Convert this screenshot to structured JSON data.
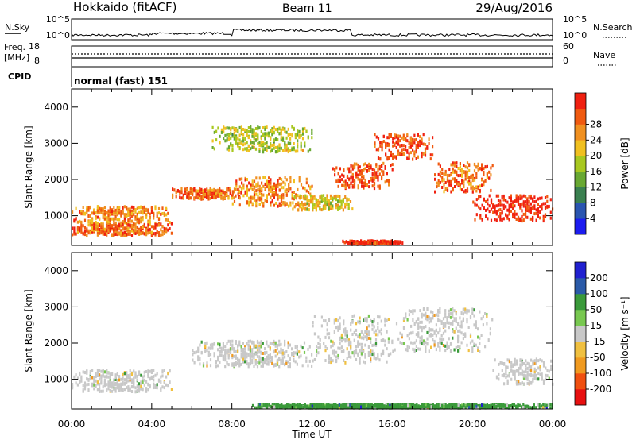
{
  "header": {
    "radar": "Hokkaido (fitACF)",
    "beam": "Beam 11",
    "date": "29/Aug/2016"
  },
  "strip": {
    "nsky_label": "N.Sky",
    "nsearch_label": "N.Search",
    "nave_label": "Nave",
    "freq_label_line1": "Freq.",
    "freq_label_line2": "[MHz]",
    "cpid_label": "CPID",
    "cpid_value": "normal (fast) 151",
    "noise_ticks_left": [
      "10^5",
      "10^0"
    ],
    "noise_ticks_right": [
      "10^5",
      "10^0"
    ],
    "freq_ticks": [
      "18",
      "8"
    ],
    "nave_ticks": [
      "60",
      "0"
    ]
  },
  "chart_data": [
    {
      "type": "heatmap",
      "name": "power",
      "ylabel": "Slant Range [km]",
      "ylim": [
        180,
        4500
      ],
      "yticks": [
        "1000",
        "2000",
        "3000",
        "4000"
      ],
      "xlim": [
        "00:00",
        "24:00"
      ],
      "colorbar": {
        "label": "Power [dB]",
        "ticks": [
          "4",
          "8",
          "12",
          "16",
          "20",
          "24",
          "28"
        ],
        "colors": [
          "#1c1cf0",
          "#2a55b0",
          "#3a8050",
          "#68a832",
          "#a8c820",
          "#f0c020",
          "#f09020",
          "#f05a10",
          "#f02010"
        ]
      },
      "bands": [
        {
          "t": [
            0,
            1.5,
            3,
            5
          ],
          "range": [
            800,
            1300
          ],
          "level": 0.75
        },
        {
          "t": [
            0,
            1.5,
            3,
            5
          ],
          "range": [
            500,
            800
          ],
          "level": 0.8
        },
        {
          "t": [
            5,
            6,
            7,
            8.5
          ],
          "range": [
            1500,
            1800
          ],
          "level": 0.8
        },
        {
          "t": [
            8,
            9,
            10.5,
            12
          ],
          "range": [
            1300,
            2100
          ],
          "level": 0.75
        },
        {
          "t": [
            11,
            12,
            13,
            14
          ],
          "range": [
            1200,
            1600
          ],
          "level": 0.6
        },
        {
          "t": [
            13,
            14,
            15,
            16
          ],
          "range": [
            1800,
            2500
          ],
          "level": 0.85
        },
        {
          "t": [
            15,
            16,
            17,
            18
          ],
          "range": [
            2600,
            3300
          ],
          "level": 0.85
        },
        {
          "t": [
            18,
            19,
            20,
            21
          ],
          "range": [
            1700,
            2500
          ],
          "level": 0.8
        },
        {
          "t": [
            20,
            21.5,
            23,
            24
          ],
          "range": [
            900,
            1600
          ],
          "level": 0.95
        },
        {
          "t": [
            13.5,
            14.5,
            15.5,
            16.5
          ],
          "range": [
            250,
            350
          ],
          "level": 0.95
        },
        {
          "t": [
            7,
            8.5,
            10.5,
            12
          ],
          "range": [
            2800,
            3500
          ],
          "level": 0.5
        }
      ]
    },
    {
      "type": "heatmap",
      "name": "velocity",
      "ylabel": "Slant Range [km]",
      "ylim": [
        180,
        4500
      ],
      "yticks": [
        "1000",
        "2000",
        "3000",
        "4000"
      ],
      "xlabel": "Time UT",
      "xticks": [
        "00:00",
        "04:00",
        "08:00",
        "12:00",
        "16:00",
        "20:00",
        "00:00"
      ],
      "xlim": [
        "00:00",
        "24:00"
      ],
      "colorbar": {
        "label": "Velocity [m s⁻¹]",
        "ticks": [
          "-200",
          "-100",
          "-50",
          "-15",
          "15",
          "50",
          "100",
          "200"
        ],
        "colors": [
          "#e81010",
          "#f05010",
          "#f09a20",
          "#f0c040",
          "#c8c8c8",
          "#78c850",
          "#3a9a3a",
          "#2a5aa8",
          "#2020d0"
        ]
      },
      "bands": [
        {
          "t": [
            0,
            1.5,
            3,
            5
          ],
          "range": [
            700,
            1300
          ],
          "level": 0.5
        },
        {
          "t": [
            6,
            8,
            10,
            12
          ],
          "range": [
            1400,
            2100
          ],
          "level": 0.5
        },
        {
          "t": [
            12,
            13.5,
            15,
            16
          ],
          "range": [
            1500,
            2800
          ],
          "level": 0.5
        },
        {
          "t": [
            16,
            17.5,
            19,
            21
          ],
          "range": [
            1800,
            3000
          ],
          "level": 0.5
        },
        {
          "t": [
            21,
            22,
            23,
            24
          ],
          "range": [
            900,
            1600
          ],
          "level": 0.5
        },
        {
          "t": [
            9,
            12,
            16,
            24
          ],
          "range": [
            250,
            350
          ],
          "level": 0.68
        }
      ]
    }
  ]
}
